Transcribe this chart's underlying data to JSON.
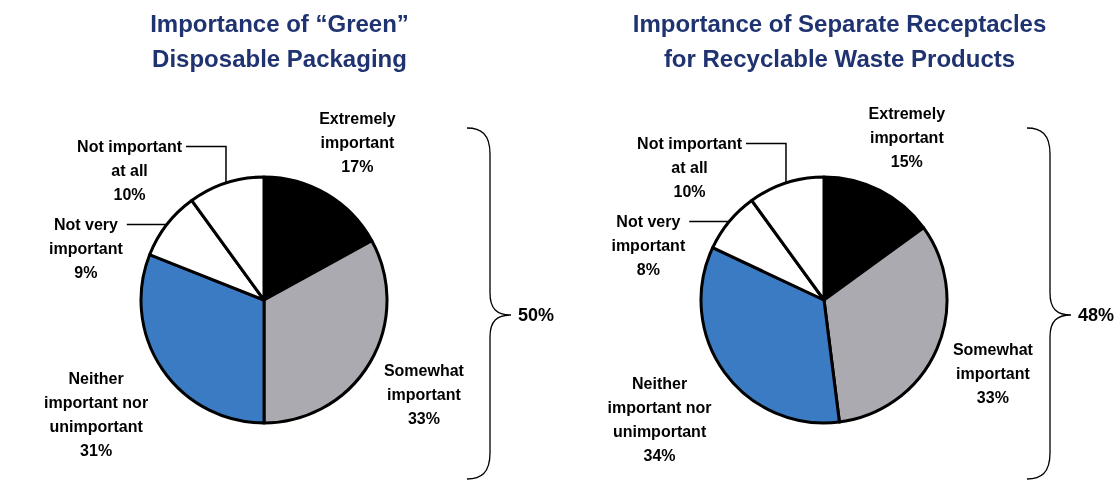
{
  "chart_data": [
    {
      "type": "pie",
      "title": "Importance of “Green” Disposable Packaging",
      "categories": [
        "Extremely important",
        "Somewhat important",
        "Neither important nor unimportant",
        "Not very important",
        "Not important at all"
      ],
      "values": [
        17,
        33,
        31,
        9,
        10
      ],
      "value_labels": [
        "17%",
        "33%",
        "31%",
        "9%",
        "10%"
      ],
      "colors": [
        "#000000",
        "#abaab0",
        "#3a7bc3",
        "#ffffff",
        "#ffffff"
      ],
      "annotations": [
        "50%"
      ]
    },
    {
      "type": "pie",
      "title": "Importance of Separate Receptacles for Recyclable Waste Products",
      "categories": [
        "Extremely important",
        "Somewhat important",
        "Neither important nor unimportant",
        "Not very important",
        "Not important at all"
      ],
      "values": [
        15,
        33,
        34,
        8,
        10
      ],
      "value_labels": [
        "15%",
        "33%",
        "34%",
        "8%",
        "10%"
      ],
      "colors": [
        "#000000",
        "#abaab0",
        "#3a7bc3",
        "#ffffff",
        "#ffffff"
      ],
      "annotations": [
        "48%"
      ]
    }
  ]
}
